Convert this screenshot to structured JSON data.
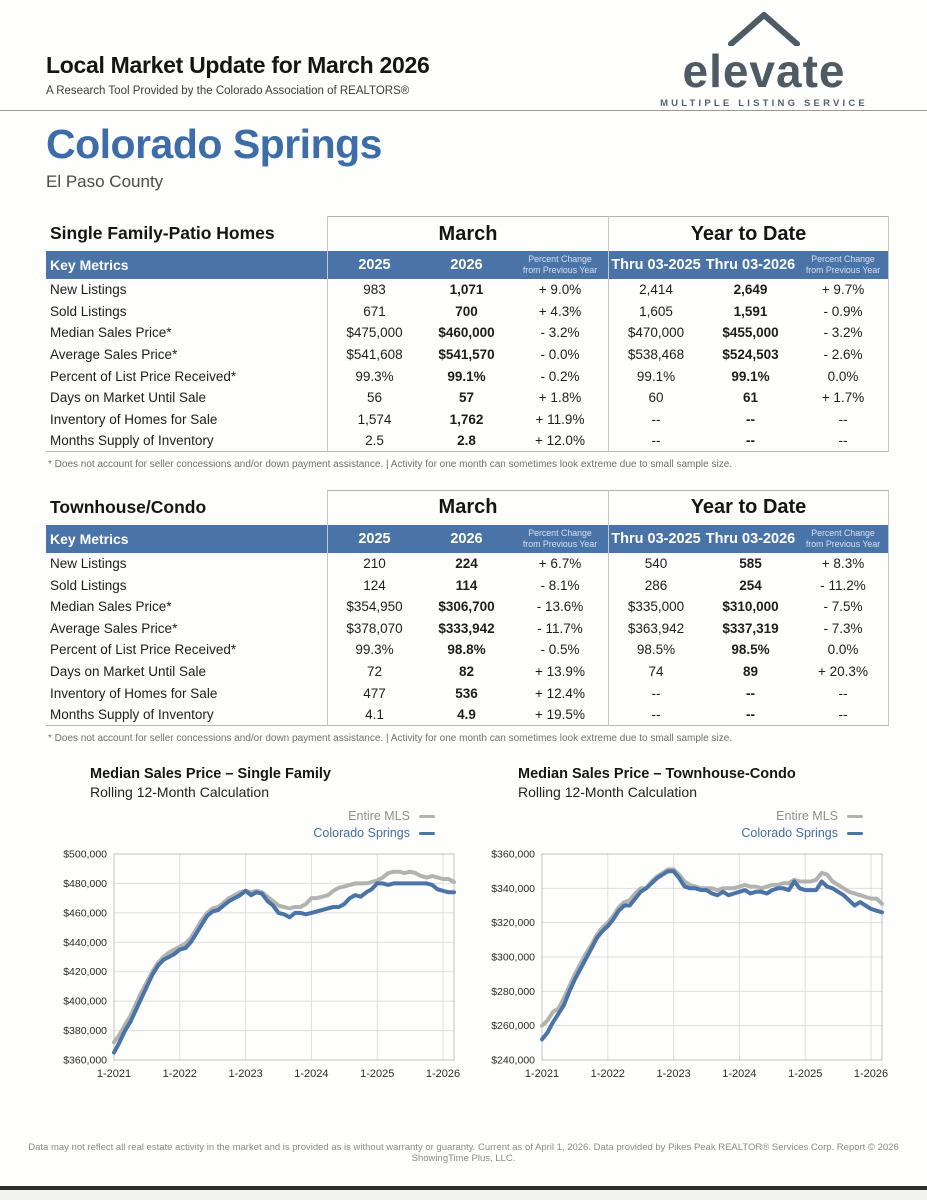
{
  "header": {
    "title": "Local Market Update for March 2026",
    "subtitle": "A Research Tool Provided by the Colorado Association of REALTORS®",
    "area": "Colorado Springs",
    "county": "El Paso County"
  },
  "logo": {
    "name": "elevate",
    "tagline": "MULTIPLE LISTING SERVICE"
  },
  "colors": {
    "accent_blue": "#3d6da8",
    "table_header_bg": "#4a73a8",
    "line_blue": "#4a74a8",
    "line_gray": "#b2b2ae",
    "logo_gray": "#4e5a64"
  },
  "tables": [
    {
      "title": "Single Family-Patio Homes",
      "key_metrics_label": "Key Metrics",
      "group_headers": [
        "March",
        "Year to Date"
      ],
      "columns": [
        "2025",
        "2026",
        "Percent Change\nfrom Previous Year",
        "Thru 03-2025",
        "Thru 03-2026",
        "Percent Change\nfrom Previous Year"
      ],
      "rows": [
        {
          "metric": "New Listings",
          "values": [
            "983",
            "1,071",
            "+ 9.0%",
            "2,414",
            "2,649",
            "+ 9.7%"
          ]
        },
        {
          "metric": "Sold Listings",
          "values": [
            "671",
            "700",
            "+ 4.3%",
            "1,605",
            "1,591",
            "- 0.9%"
          ]
        },
        {
          "metric": "Median Sales Price*",
          "values": [
            "$475,000",
            "$460,000",
            "- 3.2%",
            "$470,000",
            "$455,000",
            "- 3.2%"
          ]
        },
        {
          "metric": "Average Sales Price*",
          "values": [
            "$541,608",
            "$541,570",
            "- 0.0%",
            "$538,468",
            "$524,503",
            "- 2.6%"
          ]
        },
        {
          "metric": "Percent of List Price Received*",
          "values": [
            "99.3%",
            "99.1%",
            "- 0.2%",
            "99.1%",
            "99.1%",
            "0.0%"
          ]
        },
        {
          "metric": "Days on Market Until Sale",
          "values": [
            "56",
            "57",
            "+ 1.8%",
            "60",
            "61",
            "+ 1.7%"
          ]
        },
        {
          "metric": "Inventory of Homes for Sale",
          "values": [
            "1,574",
            "1,762",
            "+ 11.9%",
            "--",
            "--",
            "--"
          ]
        },
        {
          "metric": "Months Supply of Inventory",
          "values": [
            "2.5",
            "2.8",
            "+ 12.0%",
            "--",
            "--",
            "--"
          ]
        }
      ],
      "footnote": "* Does not account for seller concessions and/or down payment assistance.  |  Activity for one month can sometimes look extreme due to small sample size."
    },
    {
      "title": "Townhouse/Condo",
      "key_metrics_label": "Key Metrics",
      "group_headers": [
        "March",
        "Year to Date"
      ],
      "columns": [
        "2025",
        "2026",
        "Percent Change\nfrom Previous Year",
        "Thru 03-2025",
        "Thru 03-2026",
        "Percent Change\nfrom Previous Year"
      ],
      "rows": [
        {
          "metric": "New Listings",
          "values": [
            "210",
            "224",
            "+ 6.7%",
            "540",
            "585",
            "+ 8.3%"
          ]
        },
        {
          "metric": "Sold Listings",
          "values": [
            "124",
            "114",
            "- 8.1%",
            "286",
            "254",
            "- 11.2%"
          ]
        },
        {
          "metric": "Median Sales Price*",
          "values": [
            "$354,950",
            "$306,700",
            "- 13.6%",
            "$335,000",
            "$310,000",
            "- 7.5%"
          ]
        },
        {
          "metric": "Average Sales Price*",
          "values": [
            "$378,070",
            "$333,942",
            "- 11.7%",
            "$363,942",
            "$337,319",
            "- 7.3%"
          ]
        },
        {
          "metric": "Percent of List Price Received*",
          "values": [
            "99.3%",
            "98.8%",
            "- 0.5%",
            "98.5%",
            "98.5%",
            "0.0%"
          ]
        },
        {
          "metric": "Days on Market Until Sale",
          "values": [
            "72",
            "82",
            "+ 13.9%",
            "74",
            "89",
            "+ 20.3%"
          ]
        },
        {
          "metric": "Inventory of Homes for Sale",
          "values": [
            "477",
            "536",
            "+ 12.4%",
            "--",
            "--",
            "--"
          ]
        },
        {
          "metric": "Months Supply of Inventory",
          "values": [
            "4.1",
            "4.9",
            "+ 19.5%",
            "--",
            "--",
            "--"
          ]
        }
      ],
      "footnote": "* Does not account for seller concessions and/or down payment assistance.  |  Activity for one month can sometimes look extreme due to small sample size."
    }
  ],
  "chart_data": [
    {
      "type": "line",
      "title": "Median Sales Price – Single Family",
      "subtitle": "Rolling 12-Month Calculation",
      "legend": [
        {
          "name": "Entire MLS",
          "color": "#b2b2ae",
          "text_color": "#8f8f8c"
        },
        {
          "name": "Colorado Springs",
          "color": "#4a74a8",
          "text_color": "#3f6fa5"
        }
      ],
      "ylim": [
        360000,
        500000
      ],
      "ytick_step": 20000,
      "x_tick_indices": [
        0,
        12,
        24,
        36,
        48,
        60
      ],
      "x_tick_labels": [
        "1-2021",
        "1-2022",
        "1-2023",
        "1-2024",
        "1-2025",
        "1-2026"
      ],
      "grid": true,
      "legend_position": "top-right",
      "series": [
        {
          "name": "Entire MLS",
          "color": "#b2b2ae",
          "values": [
            372000,
            377000,
            384000,
            390000,
            398000,
            406000,
            413000,
            420000,
            426000,
            430000,
            433000,
            435000,
            437000,
            439000,
            443000,
            449000,
            455000,
            460000,
            463000,
            464000,
            467000,
            470000,
            472000,
            474000,
            475000,
            474000,
            475000,
            474000,
            471000,
            468000,
            465000,
            464000,
            463000,
            464000,
            464000,
            466000,
            470000,
            470000,
            471000,
            472000,
            475000,
            477000,
            478000,
            479000,
            480000,
            480000,
            480000,
            481000,
            482000,
            484000,
            487000,
            488000,
            488000,
            487000,
            488000,
            487000,
            485000,
            484000,
            485000,
            484000,
            483000,
            483000,
            481000
          ]
        },
        {
          "name": "Colorado Springs",
          "color": "#4a74a8",
          "values": [
            365000,
            372000,
            380000,
            386000,
            394000,
            402000,
            410000,
            418000,
            424000,
            428000,
            430000,
            432000,
            435000,
            436000,
            440000,
            446000,
            452000,
            458000,
            461000,
            462000,
            465000,
            468000,
            470000,
            472000,
            475000,
            472000,
            474000,
            473000,
            468000,
            465000,
            460000,
            459000,
            457000,
            460000,
            460000,
            459000,
            460000,
            461000,
            462000,
            463000,
            464000,
            464000,
            466000,
            470000,
            472000,
            471000,
            474000,
            476000,
            480000,
            480000,
            479000,
            480000,
            480000,
            480000,
            480000,
            480000,
            480000,
            480000,
            479000,
            476000,
            475000,
            474000,
            474000
          ]
        }
      ]
    },
    {
      "type": "line",
      "title": "Median Sales Price – Townhouse-Condo",
      "subtitle": "Rolling 12-Month Calculation",
      "legend": [
        {
          "name": "Entire MLS",
          "color": "#b2b2ae",
          "text_color": "#8f8f8c"
        },
        {
          "name": "Colorado Springs",
          "color": "#4a74a8",
          "text_color": "#3f6fa5"
        }
      ],
      "ylim": [
        240000,
        360000
      ],
      "ytick_step": 20000,
      "x_tick_indices": [
        0,
        12,
        24,
        36,
        48,
        60
      ],
      "x_tick_labels": [
        "1-2021",
        "1-2022",
        "1-2023",
        "1-2024",
        "1-2025",
        "1-2026"
      ],
      "grid": true,
      "legend_position": "top-right",
      "series": [
        {
          "name": "Entire MLS",
          "color": "#b2b2ae",
          "values": [
            260000,
            263000,
            268000,
            270000,
            276000,
            283000,
            290000,
            296000,
            302000,
            307000,
            313000,
            317000,
            320000,
            324000,
            329000,
            332000,
            333000,
            337000,
            340000,
            340000,
            344000,
            347000,
            349000,
            351000,
            351000,
            348000,
            344000,
            342000,
            341000,
            340000,
            340000,
            340000,
            339000,
            340000,
            340000,
            340000,
            341000,
            342000,
            341000,
            341000,
            340000,
            341000,
            342000,
            342000,
            343000,
            343000,
            345000,
            344000,
            344000,
            344000,
            345000,
            349000,
            348000,
            344000,
            342000,
            340000,
            338000,
            337000,
            336000,
            335000,
            334000,
            334000,
            331000
          ]
        },
        {
          "name": "Colorado Springs",
          "color": "#4a74a8",
          "values": [
            252000,
            256000,
            262000,
            267000,
            272000,
            280000,
            287000,
            293000,
            299000,
            305000,
            311000,
            315000,
            318000,
            322000,
            327000,
            330000,
            330000,
            334000,
            338000,
            340000,
            343000,
            346000,
            348000,
            350000,
            350000,
            346000,
            341000,
            340000,
            340000,
            339000,
            339000,
            337000,
            336000,
            338000,
            336000,
            337000,
            338000,
            339000,
            337000,
            338000,
            338000,
            337000,
            339000,
            340000,
            340000,
            339000,
            344000,
            340000,
            339000,
            339000,
            339000,
            344000,
            341000,
            340000,
            338000,
            336000,
            333000,
            330000,
            332000,
            330000,
            328000,
            327000,
            326000
          ]
        }
      ]
    }
  ],
  "footer": {
    "disclaimer": "Data may not reflect all real estate activity in the market and is provided as is without warranty or guaranty. Current as of April 1, 2026. Data provided by Pikes Peak REALTOR® Services Corp. Report © 2026 ShowingTime Plus, LLC."
  }
}
